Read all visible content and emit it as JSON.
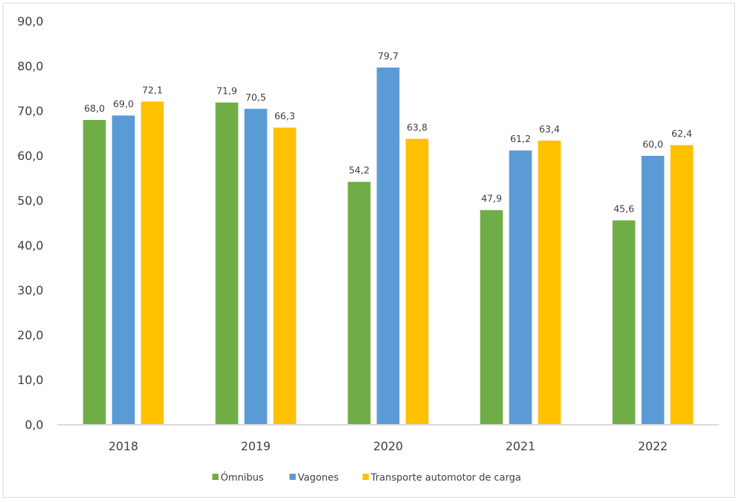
{
  "chart_data": {
    "type": "bar",
    "title": "",
    "xlabel": "",
    "ylabel": "",
    "ylim": [
      0,
      90
    ],
    "yticks": [
      "0,0",
      "10,0",
      "20,0",
      "30,0",
      "40,0",
      "50,0",
      "60,0",
      "70,0",
      "80,0",
      "90,0"
    ],
    "ytick_values": [
      0,
      10,
      20,
      30,
      40,
      50,
      60,
      70,
      80,
      90
    ],
    "grid": false,
    "legend_position": "bottom",
    "categories": [
      "2018",
      "2019",
      "2020",
      "2021",
      "2022"
    ],
    "series": [
      {
        "name": "Ómnibus",
        "color": "#70ad47",
        "values": [
          68.0,
          71.9,
          54.2,
          47.9,
          45.6
        ],
        "labels": [
          "68,0",
          "71,9",
          "54,2",
          "47,9",
          "45,6"
        ]
      },
      {
        "name": "Vagones",
        "color": "#5b9bd5",
        "values": [
          69.0,
          70.5,
          79.7,
          61.2,
          60.0
        ],
        "labels": [
          "69,0",
          "70,5",
          "79,7",
          "61,2",
          "60,0"
        ]
      },
      {
        "name": "Transporte automotor de carga",
        "color": "#ffc000",
        "values": [
          72.1,
          66.3,
          63.8,
          63.4,
          62.4
        ],
        "labels": [
          "72,1",
          "66,3",
          "63,8",
          "63,4",
          "62,4"
        ]
      }
    ]
  }
}
